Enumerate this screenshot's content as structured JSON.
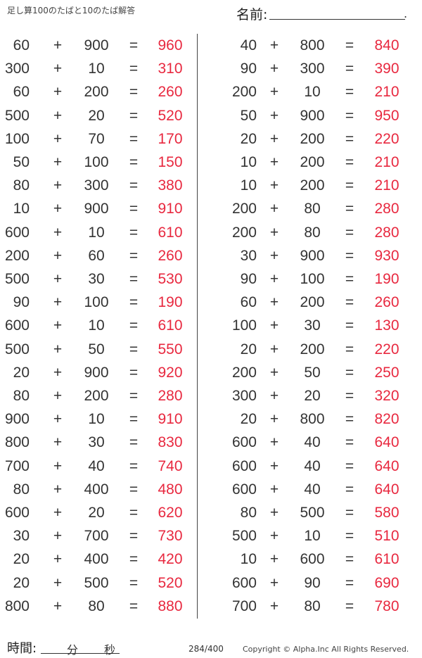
{
  "header": {
    "title": "足し算100のたばと10のたば解答",
    "name_label": "名前:",
    "name_end": "."
  },
  "footer": {
    "time_label": "時間:",
    "minutes": "分",
    "seconds": "秒",
    "page": "284/400",
    "copyright": "Copyright ©  Alpha.Inc All Rights Reserved."
  },
  "symbols": {
    "plus": "+",
    "equals": "="
  },
  "colors": {
    "answer": "#e8283f",
    "text": "#333333"
  },
  "left": [
    [
      "60",
      "900",
      "960"
    ],
    [
      "300",
      "10",
      "310"
    ],
    [
      "60",
      "200",
      "260"
    ],
    [
      "500",
      "20",
      "520"
    ],
    [
      "100",
      "70",
      "170"
    ],
    [
      "50",
      "100",
      "150"
    ],
    [
      "80",
      "300",
      "380"
    ],
    [
      "10",
      "900",
      "910"
    ],
    [
      "600",
      "10",
      "610"
    ],
    [
      "200",
      "60",
      "260"
    ],
    [
      "500",
      "30",
      "530"
    ],
    [
      "90",
      "100",
      "190"
    ],
    [
      "600",
      "10",
      "610"
    ],
    [
      "500",
      "50",
      "550"
    ],
    [
      "20",
      "900",
      "920"
    ],
    [
      "80",
      "200",
      "280"
    ],
    [
      "900",
      "10",
      "910"
    ],
    [
      "800",
      "30",
      "830"
    ],
    [
      "700",
      "40",
      "740"
    ],
    [
      "80",
      "400",
      "480"
    ],
    [
      "600",
      "20",
      "620"
    ],
    [
      "30",
      "700",
      "730"
    ],
    [
      "20",
      "400",
      "420"
    ],
    [
      "20",
      "500",
      "520"
    ],
    [
      "800",
      "80",
      "880"
    ]
  ],
  "right": [
    [
      "40",
      "800",
      "840"
    ],
    [
      "90",
      "300",
      "390"
    ],
    [
      "200",
      "10",
      "210"
    ],
    [
      "50",
      "900",
      "950"
    ],
    [
      "20",
      "200",
      "220"
    ],
    [
      "10",
      "200",
      "210"
    ],
    [
      "10",
      "200",
      "210"
    ],
    [
      "200",
      "80",
      "280"
    ],
    [
      "200",
      "80",
      "280"
    ],
    [
      "30",
      "900",
      "930"
    ],
    [
      "90",
      "100",
      "190"
    ],
    [
      "60",
      "200",
      "260"
    ],
    [
      "100",
      "30",
      "130"
    ],
    [
      "20",
      "200",
      "220"
    ],
    [
      "200",
      "50",
      "250"
    ],
    [
      "300",
      "20",
      "320"
    ],
    [
      "20",
      "800",
      "820"
    ],
    [
      "600",
      "40",
      "640"
    ],
    [
      "600",
      "40",
      "640"
    ],
    [
      "600",
      "40",
      "640"
    ],
    [
      "80",
      "500",
      "580"
    ],
    [
      "500",
      "10",
      "510"
    ],
    [
      "10",
      "600",
      "610"
    ],
    [
      "600",
      "90",
      "690"
    ],
    [
      "700",
      "80",
      "780"
    ]
  ]
}
